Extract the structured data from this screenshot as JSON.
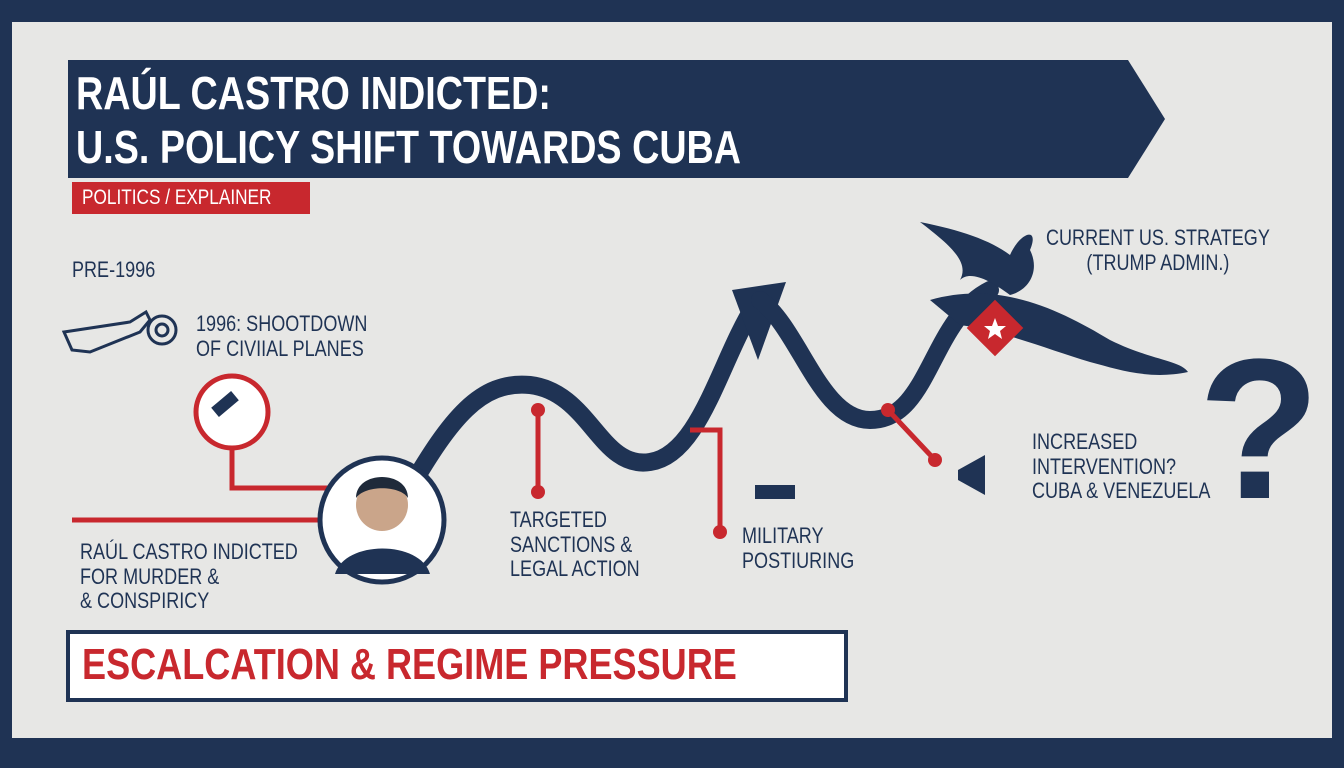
{
  "header": {
    "title_lines": [
      "RAÚL CASTRO INDICTED:",
      "U.S. POLICY SHIFT TOWARDS CUBA"
    ],
    "tag": "POLITICS / EXPLAINER"
  },
  "timeline": [
    {
      "lines": [
        "PRE-1996"
      ]
    },
    {
      "lines": [
        "1996: SHOOTDOWN",
        "OF CIVIIAL PLANES"
      ]
    },
    {
      "lines": [
        "RAÚL CASTRO INDICTED",
        "FOR MURDER &",
        "& CONSPIRICY"
      ]
    },
    {
      "lines": [
        "TARGETED",
        "SANCTIONS &",
        "LEGAL ACTION"
      ]
    },
    {
      "lines": [
        "MILITARY",
        "POSTIURING"
      ]
    },
    {
      "lines": [
        "CURRENT US. STRATEGY",
        "(TRUMP ADMIN.)"
      ]
    },
    {
      "lines": [
        "INCREASED",
        "INTERVENTION?",
        "CUBA & VENEZUELA"
      ]
    }
  ],
  "question_mark": "?",
  "footer": {
    "banner": "ESCALCATION & REGIME PRESSURE"
  }
}
